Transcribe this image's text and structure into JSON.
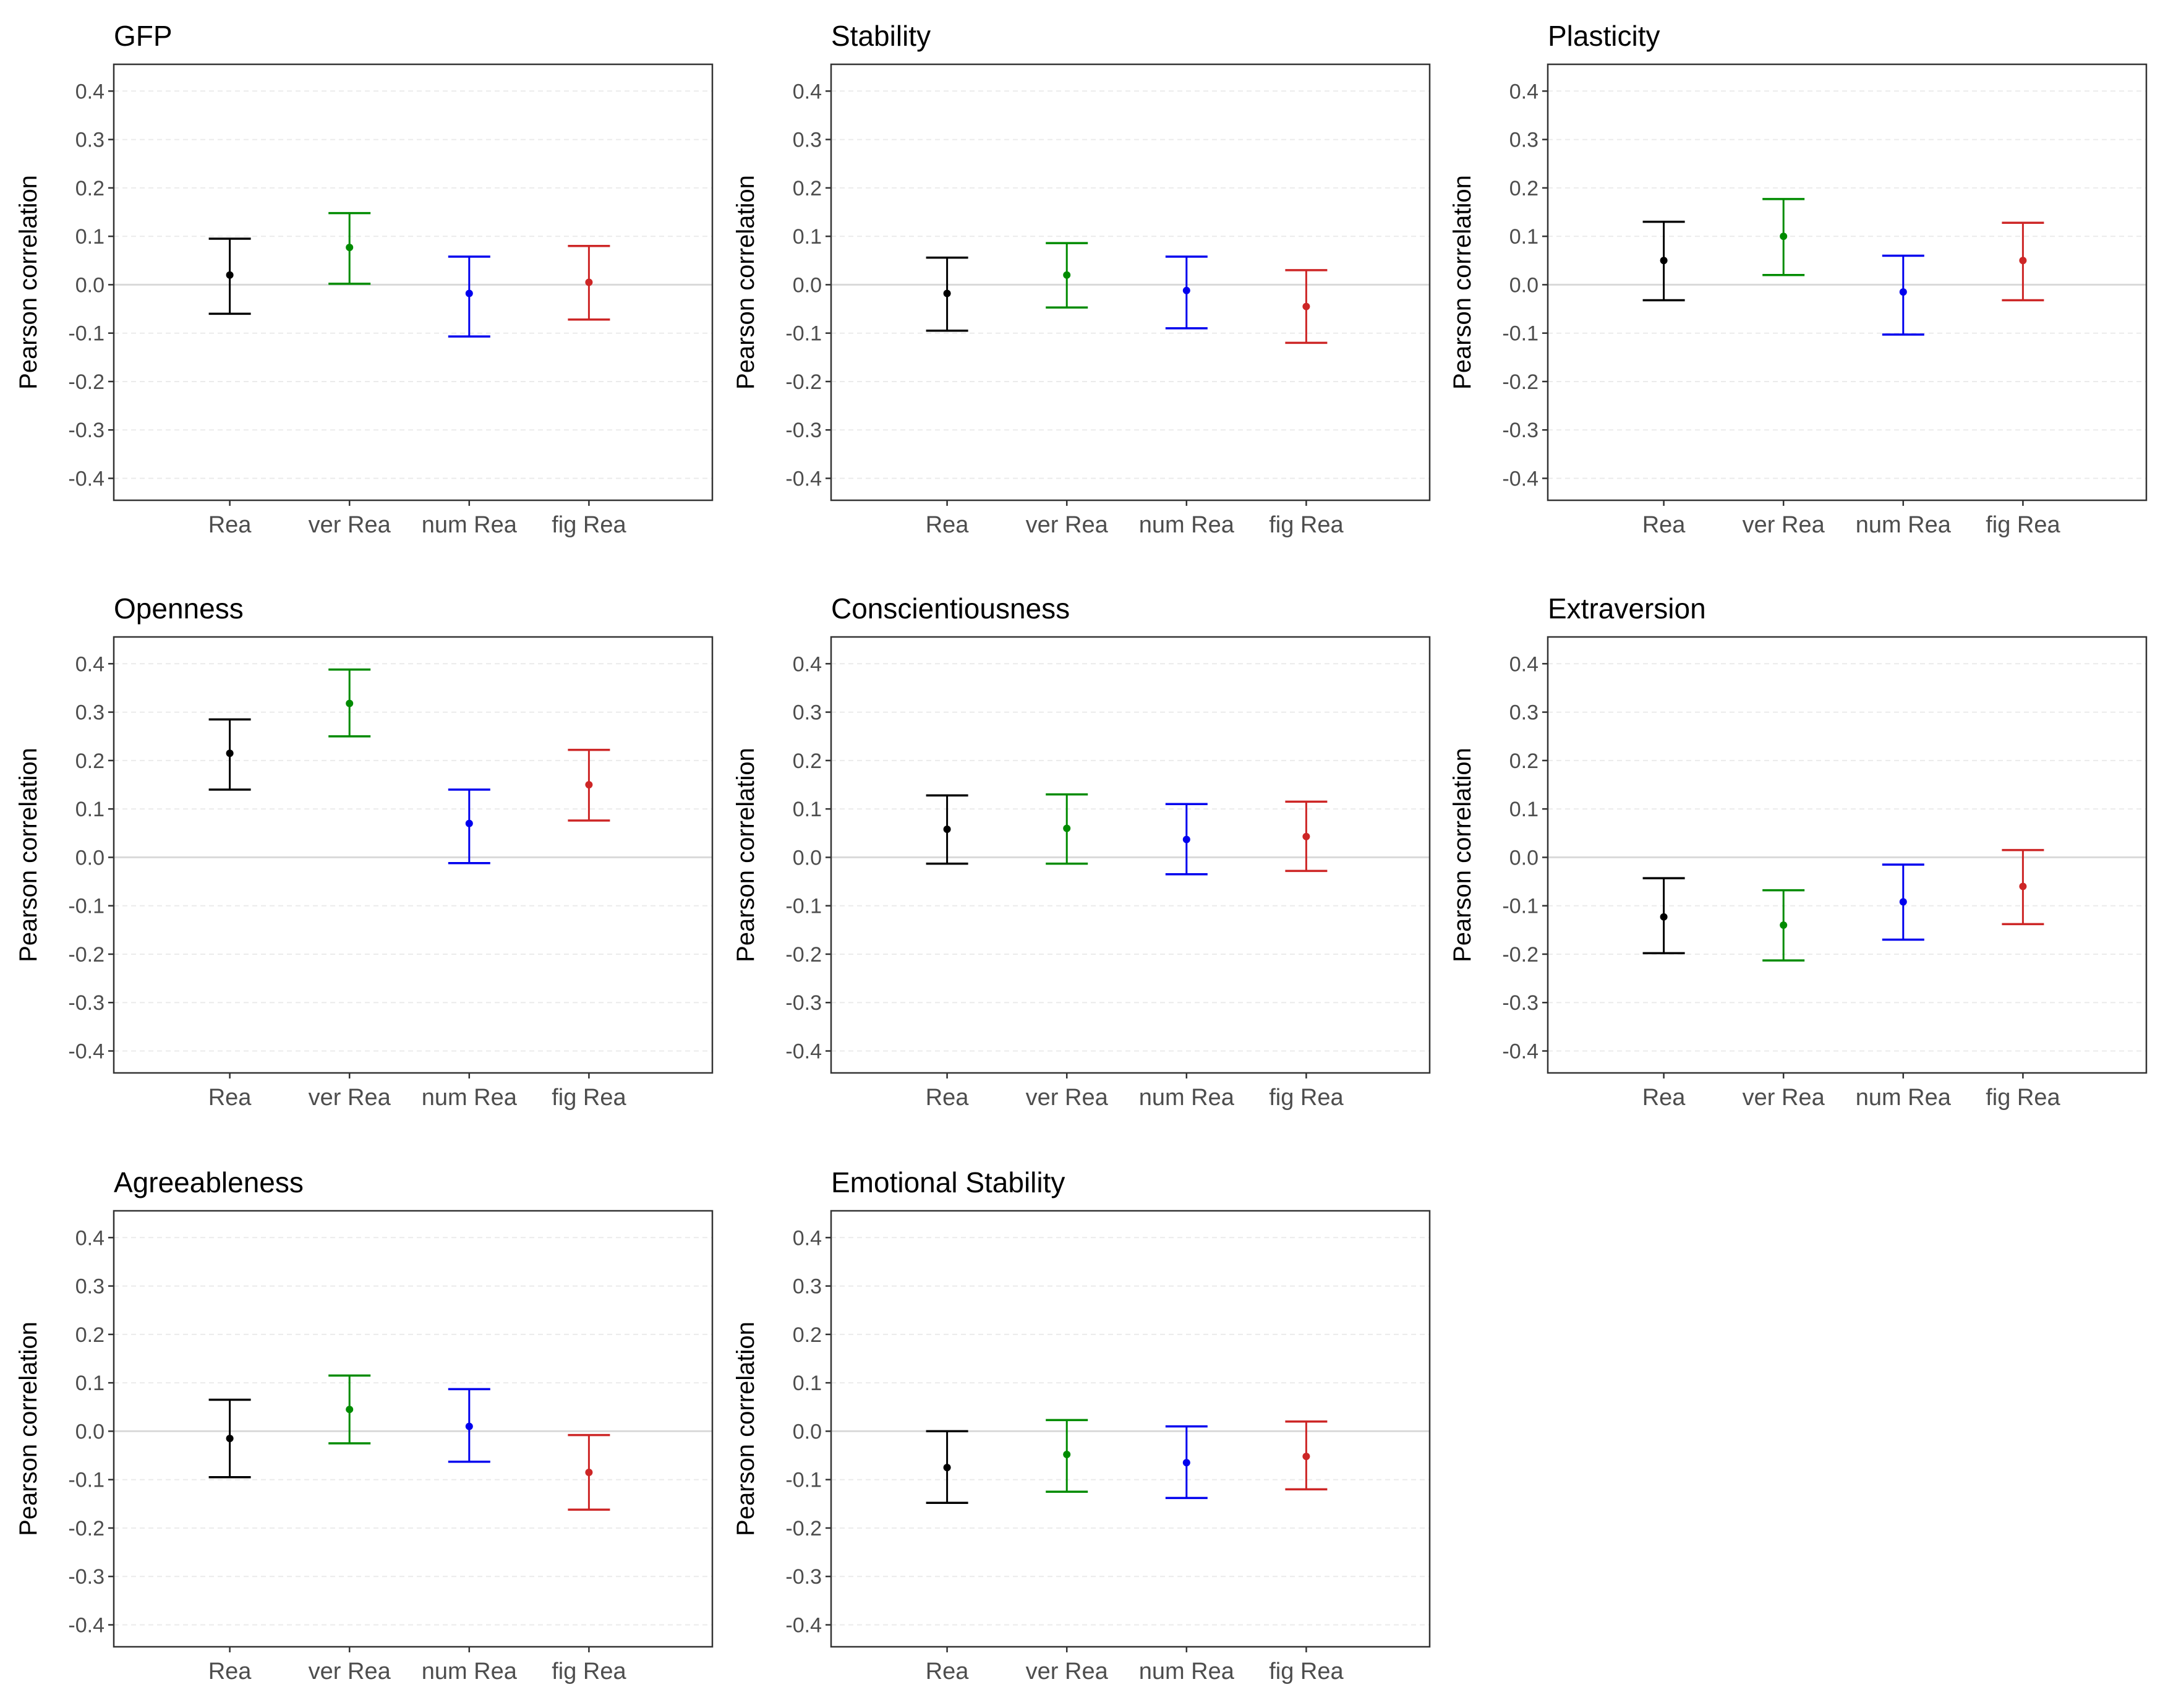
{
  "chart_data": [
    {
      "type": "errorbar",
      "title": "GFP",
      "xlabel": "",
      "ylabel": "Pearson correlation",
      "ylim": [
        -0.43,
        0.44
      ],
      "yticks": [
        "0.4",
        "0.3",
        "0.2",
        "0.1",
        "0.0",
        "-0.1",
        "-0.2",
        "-0.3",
        "-0.4"
      ],
      "categories": [
        "Rea",
        "ver Rea",
        "num Rea",
        "fig Rea"
      ],
      "colors": [
        "#000000",
        "#008B00",
        "#0000EE",
        "#CD2626"
      ],
      "values": [
        0.02,
        0.077,
        -0.018,
        0.005
      ],
      "lower": [
        -0.06,
        0.002,
        -0.107,
        -0.072
      ],
      "upper": [
        0.095,
        0.148,
        0.058,
        0.08
      ]
    },
    {
      "type": "errorbar",
      "title": "Stability",
      "xlabel": "",
      "ylabel": "Pearson correlation",
      "ylim": [
        -0.43,
        0.44
      ],
      "yticks": [
        "0.4",
        "0.3",
        "0.2",
        "0.1",
        "0.0",
        "-0.1",
        "-0.2",
        "-0.3",
        "-0.4"
      ],
      "categories": [
        "Rea",
        "ver Rea",
        "num Rea",
        "fig Rea"
      ],
      "colors": [
        "#000000",
        "#008B00",
        "#0000EE",
        "#CD2626"
      ],
      "values": [
        -0.018,
        0.02,
        -0.012,
        -0.045
      ],
      "lower": [
        -0.095,
        -0.047,
        -0.09,
        -0.12
      ],
      "upper": [
        0.056,
        0.086,
        0.058,
        0.03
      ]
    },
    {
      "type": "errorbar",
      "title": "Plasticity",
      "xlabel": "",
      "ylabel": "Pearson correlation",
      "ylim": [
        -0.43,
        0.44
      ],
      "yticks": [
        "0.4",
        "0.3",
        "0.2",
        "0.1",
        "0.0",
        "-0.1",
        "-0.2",
        "-0.3",
        "-0.4"
      ],
      "categories": [
        "Rea",
        "ver Rea",
        "num Rea",
        "fig Rea"
      ],
      "colors": [
        "#000000",
        "#008B00",
        "#0000EE",
        "#CD2626"
      ],
      "values": [
        0.05,
        0.1,
        -0.015,
        0.05
      ],
      "lower": [
        -0.032,
        0.02,
        -0.103,
        -0.032
      ],
      "upper": [
        0.13,
        0.177,
        0.06,
        0.128
      ]
    },
    {
      "type": "errorbar",
      "title": "Openness",
      "xlabel": "",
      "ylabel": "Pearson correlation",
      "ylim": [
        -0.43,
        0.44
      ],
      "yticks": [
        "0.4",
        "0.3",
        "0.2",
        "0.1",
        "0.0",
        "-0.1",
        "-0.2",
        "-0.3",
        "-0.4"
      ],
      "categories": [
        "Rea",
        "ver Rea",
        "num Rea",
        "fig Rea"
      ],
      "colors": [
        "#000000",
        "#008B00",
        "#0000EE",
        "#CD2626"
      ],
      "values": [
        0.215,
        0.318,
        0.07,
        0.15
      ],
      "lower": [
        0.14,
        0.25,
        -0.012,
        0.076
      ],
      "upper": [
        0.285,
        0.388,
        0.14,
        0.222
      ]
    },
    {
      "type": "errorbar",
      "title": "Conscientiousness",
      "xlabel": "",
      "ylabel": "Pearson correlation",
      "ylim": [
        -0.43,
        0.44
      ],
      "yticks": [
        "0.4",
        "0.3",
        "0.2",
        "0.1",
        "0.0",
        "-0.1",
        "-0.2",
        "-0.3",
        "-0.4"
      ],
      "categories": [
        "Rea",
        "ver Rea",
        "num Rea",
        "fig Rea"
      ],
      "colors": [
        "#000000",
        "#008B00",
        "#0000EE",
        "#CD2626"
      ],
      "values": [
        0.058,
        0.06,
        0.037,
        0.043
      ],
      "lower": [
        -0.013,
        -0.013,
        -0.035,
        -0.028
      ],
      "upper": [
        0.128,
        0.13,
        0.11,
        0.115
      ]
    },
    {
      "type": "errorbar",
      "title": "Extraversion",
      "xlabel": "",
      "ylabel": "Pearson correlation",
      "ylim": [
        -0.43,
        0.44
      ],
      "yticks": [
        "0.4",
        "0.3",
        "0.2",
        "0.1",
        "0.0",
        "-0.1",
        "-0.2",
        "-0.3",
        "-0.4"
      ],
      "categories": [
        "Rea",
        "ver Rea",
        "num Rea",
        "fig Rea"
      ],
      "colors": [
        "#000000",
        "#008B00",
        "#0000EE",
        "#CD2626"
      ],
      "values": [
        -0.123,
        -0.14,
        -0.092,
        -0.06
      ],
      "lower": [
        -0.198,
        -0.213,
        -0.17,
        -0.138
      ],
      "upper": [
        -0.043,
        -0.068,
        -0.015,
        0.015
      ]
    },
    {
      "type": "errorbar",
      "title": "Agreeableness",
      "xlabel": "",
      "ylabel": "Pearson correlation",
      "ylim": [
        -0.43,
        0.44
      ],
      "yticks": [
        "0.4",
        "0.3",
        "0.2",
        "0.1",
        "0.0",
        "-0.1",
        "-0.2",
        "-0.3",
        "-0.4"
      ],
      "categories": [
        "Rea",
        "ver Rea",
        "num Rea",
        "fig Rea"
      ],
      "colors": [
        "#000000",
        "#008B00",
        "#0000EE",
        "#CD2626"
      ],
      "values": [
        -0.015,
        0.045,
        0.01,
        -0.085
      ],
      "lower": [
        -0.095,
        -0.025,
        -0.063,
        -0.162
      ],
      "upper": [
        0.065,
        0.115,
        0.087,
        -0.008
      ]
    },
    {
      "type": "errorbar",
      "title": "Emotional Stability",
      "xlabel": "",
      "ylabel": "Pearson correlation",
      "ylim": [
        -0.43,
        0.44
      ],
      "yticks": [
        "0.4",
        "0.3",
        "0.2",
        "0.1",
        "0.0",
        "-0.1",
        "-0.2",
        "-0.3",
        "-0.4"
      ],
      "categories": [
        "Rea",
        "ver Rea",
        "num Rea",
        "fig Rea"
      ],
      "colors": [
        "#000000",
        "#008B00",
        "#0000EE",
        "#CD2626"
      ],
      "values": [
        -0.075,
        -0.048,
        -0.065,
        -0.052
      ],
      "lower": [
        -0.148,
        -0.125,
        -0.138,
        -0.12
      ],
      "upper": [
        0.0,
        0.023,
        0.01,
        0.02
      ]
    }
  ]
}
